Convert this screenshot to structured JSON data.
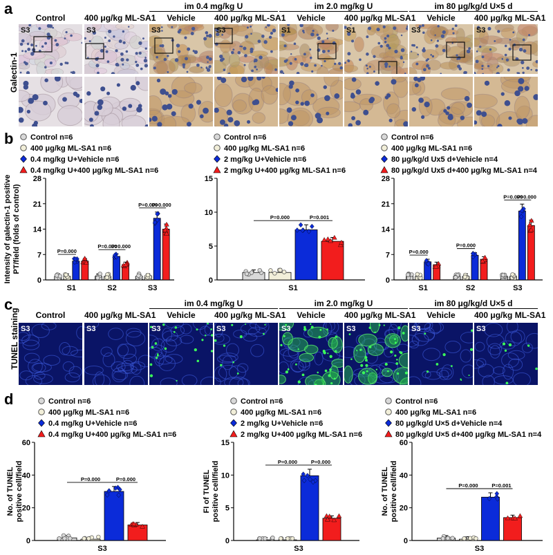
{
  "panels": {
    "a": {
      "label": "a",
      "row_label": "Galectin-1",
      "groups": [
        "im 0.4 mg/kg U",
        "im 2.0 mg/kg U",
        "im 80 μg/kg/d U×5 d"
      ],
      "columns": [
        "Control",
        "400 μg/kg ML-SA1",
        "Vehicle",
        "400 μg/kg ML-SA1",
        "Vehicle",
        "400 μg/kg ML-SA1",
        "Vehicle",
        "400 μg/kg ML-SA1"
      ],
      "tags": [
        "S3",
        "S3",
        "S3",
        "S3",
        "S1",
        "S1",
        "S3",
        "S3"
      ]
    },
    "b": {
      "label": "b"
    },
    "c": {
      "label": "c",
      "row_label": "TUNEL staining",
      "groups": [
        "im 0.4 mg/kg U",
        "im 2.0 mg/kg U",
        "im 80 μg/kg/d U×5 d"
      ],
      "columns": [
        "Control",
        "400 μg/kg ML-SA1",
        "Vehicle",
        "400 μg/kg ML-SA1",
        "Vehicle",
        "400 μg/kg ML-SA1",
        "Vehicle",
        "400 μg/kg ML-SA1"
      ],
      "tags": [
        "S3",
        "S3",
        "S3",
        "S3",
        "S3",
        "S3",
        "S3",
        "S3"
      ]
    },
    "d": {
      "label": "d"
    }
  },
  "colors": {
    "control": "#d9d9d9",
    "mlsa1": "#f2efd9",
    "vehicle": "#0b2bd9",
    "treated": "#f21d1d"
  },
  "chart_data": [
    {
      "id": "b1",
      "type": "bar",
      "ylabel": "Intensity of galectin-1 positive PT/field (folds of control)",
      "ylim": [
        0,
        28
      ],
      "yticks": [
        0,
        7,
        14,
        21,
        28
      ],
      "categories": [
        "S1",
        "S2",
        "S3"
      ],
      "series": [
        {
          "name": "Control n=6",
          "values": [
            1,
            1,
            1
          ]
        },
        {
          "name": "400 μg/kg ML-SA1 n=6",
          "values": [
            1,
            1,
            1
          ]
        },
        {
          "name": "0.4 mg/kg U+Vehicle n=6",
          "values": [
            5.2,
            6.5,
            17
          ]
        },
        {
          "name": "0.4 mg/kg U+400 μg/kg ML-SA1 n=6",
          "values": [
            5.2,
            4.2,
            14
          ]
        }
      ],
      "pvalues": [
        {
          "cat": 0,
          "text": "P=0.000",
          "from": 0,
          "to": 2
        },
        {
          "cat": 1,
          "text": "P=0.000",
          "from": 0,
          "to": 2
        },
        {
          "cat": 1,
          "text": "P=0.000",
          "from": 2,
          "to": 3
        },
        {
          "cat": 2,
          "text": "P=0.000",
          "from": 0,
          "to": 2
        },
        {
          "cat": 2,
          "text": "P=0.000",
          "from": 2,
          "to": 3
        }
      ]
    },
    {
      "id": "b2",
      "type": "bar",
      "ylim": [
        0,
        15
      ],
      "yticks": [
        0,
        5,
        10,
        15
      ],
      "categories": [
        "S1"
      ],
      "series": [
        {
          "name": "Control n=6",
          "values": [
            1.1
          ]
        },
        {
          "name": "400 μg/kg ML-SA1 n=6",
          "values": [
            1.1
          ]
        },
        {
          "name": "2 mg/kg U+Vehicle n=6",
          "values": [
            7.4
          ]
        },
        {
          "name": "2 mg/kg U+400 μg/kg ML-SA1 n=6",
          "values": [
            5.7
          ]
        }
      ],
      "pvalues": [
        {
          "cat": 0,
          "text": "P=0.000",
          "from": 0,
          "to": 2
        },
        {
          "cat": 0,
          "text": "P=0.001",
          "from": 2,
          "to": 3
        }
      ]
    },
    {
      "id": "b3",
      "type": "bar",
      "ylim": [
        0,
        28
      ],
      "yticks": [
        0,
        7,
        14,
        21,
        28
      ],
      "categories": [
        "S1",
        "S2",
        "S3"
      ],
      "series": [
        {
          "name": "Control n=6",
          "values": [
            1,
            1,
            1
          ]
        },
        {
          "name": "400 μg/kg ML-SA1 n=6",
          "values": [
            1,
            1,
            1
          ]
        },
        {
          "name": "80 μg/kg/d Ux5 d+Vehicle n=4",
          "values": [
            5,
            6.8,
            19
          ]
        },
        {
          "name": "80 μg/kg/d Ux5 d+400 μg/kg ML-SA1 n=4",
          "values": [
            4.2,
            5.7,
            15
          ]
        }
      ],
      "pvalues": [
        {
          "cat": 0,
          "text": "P=0.000",
          "from": 0,
          "to": 2
        },
        {
          "cat": 1,
          "text": "P=0.000",
          "from": 0,
          "to": 2
        },
        {
          "cat": 2,
          "text": "P=0.000",
          "from": 0,
          "to": 2
        },
        {
          "cat": 2,
          "text": "P=0.000",
          "from": 2,
          "to": 3
        }
      ]
    },
    {
      "id": "d1",
      "type": "bar",
      "ylabel": "No. of TUNEL positive cell/field",
      "ylim": [
        0,
        60
      ],
      "yticks": [
        0,
        20,
        40,
        60
      ],
      "categories": [
        "S3"
      ],
      "series": [
        {
          "name": "Control n=6",
          "values": [
            1.6
          ]
        },
        {
          "name": "400 μg/kg ML-SA1 n=6",
          "values": [
            0.8
          ]
        },
        {
          "name": "0.4 mg/kg U+Vehicle n=6",
          "values": [
            30
          ]
        },
        {
          "name": "0.4 mg/kg U+400 μg/kg ML-SA1 n=6",
          "values": [
            9.5
          ]
        }
      ],
      "pvalues": [
        {
          "cat": 0,
          "text": "P=0.000",
          "from": 0,
          "to": 2
        },
        {
          "cat": 0,
          "text": "P=0.000",
          "from": 2,
          "to": 3
        }
      ]
    },
    {
      "id": "d2",
      "type": "bar",
      "ylabel": "FI of TUNEL positive cell/field",
      "ylim": [
        0,
        15
      ],
      "yticks": [
        0,
        5,
        10,
        15
      ],
      "categories": [
        "S3"
      ],
      "series": [
        {
          "name": "Control n=6",
          "values": [
            0.1
          ]
        },
        {
          "name": "400 μg/kg ML-SA1 n=6",
          "values": [
            0.1
          ]
        },
        {
          "name": "2 mg/kg U+Vehicle n=6",
          "values": [
            9.9
          ]
        },
        {
          "name": "2 mg/kg U+400 μg/kg ML-SA1 n=6",
          "values": [
            3.4
          ]
        }
      ],
      "pvalues": [
        {
          "cat": 0,
          "text": "P=0.000",
          "from": 0,
          "to": 2
        },
        {
          "cat": 0,
          "text": "P=0.000",
          "from": 2,
          "to": 3
        }
      ]
    },
    {
      "id": "d3",
      "type": "bar",
      "ylabel": "No. of TUNEL positive cell/field",
      "ylim": [
        0,
        60
      ],
      "yticks": [
        0,
        20,
        40,
        60
      ],
      "categories": [
        "S3"
      ],
      "series": [
        {
          "name": "Control n=6",
          "values": [
            1.5
          ]
        },
        {
          "name": "400 μg/kg ML-SA1 n=6",
          "values": [
            0.8
          ]
        },
        {
          "name": "80 μg/kg/d U×5 d+Vehicle n=4",
          "values": [
            26.5
          ]
        },
        {
          "name": "80 μg/kg/d U×5 d+400 μg/kg ML-SA1 n=4",
          "values": [
            14
          ]
        }
      ],
      "pvalues": [
        {
          "cat": 0,
          "text": "P=0.000",
          "from": 0,
          "to": 2
        },
        {
          "cat": 0,
          "text": "P=0.001",
          "from": 2,
          "to": 3
        }
      ]
    }
  ]
}
